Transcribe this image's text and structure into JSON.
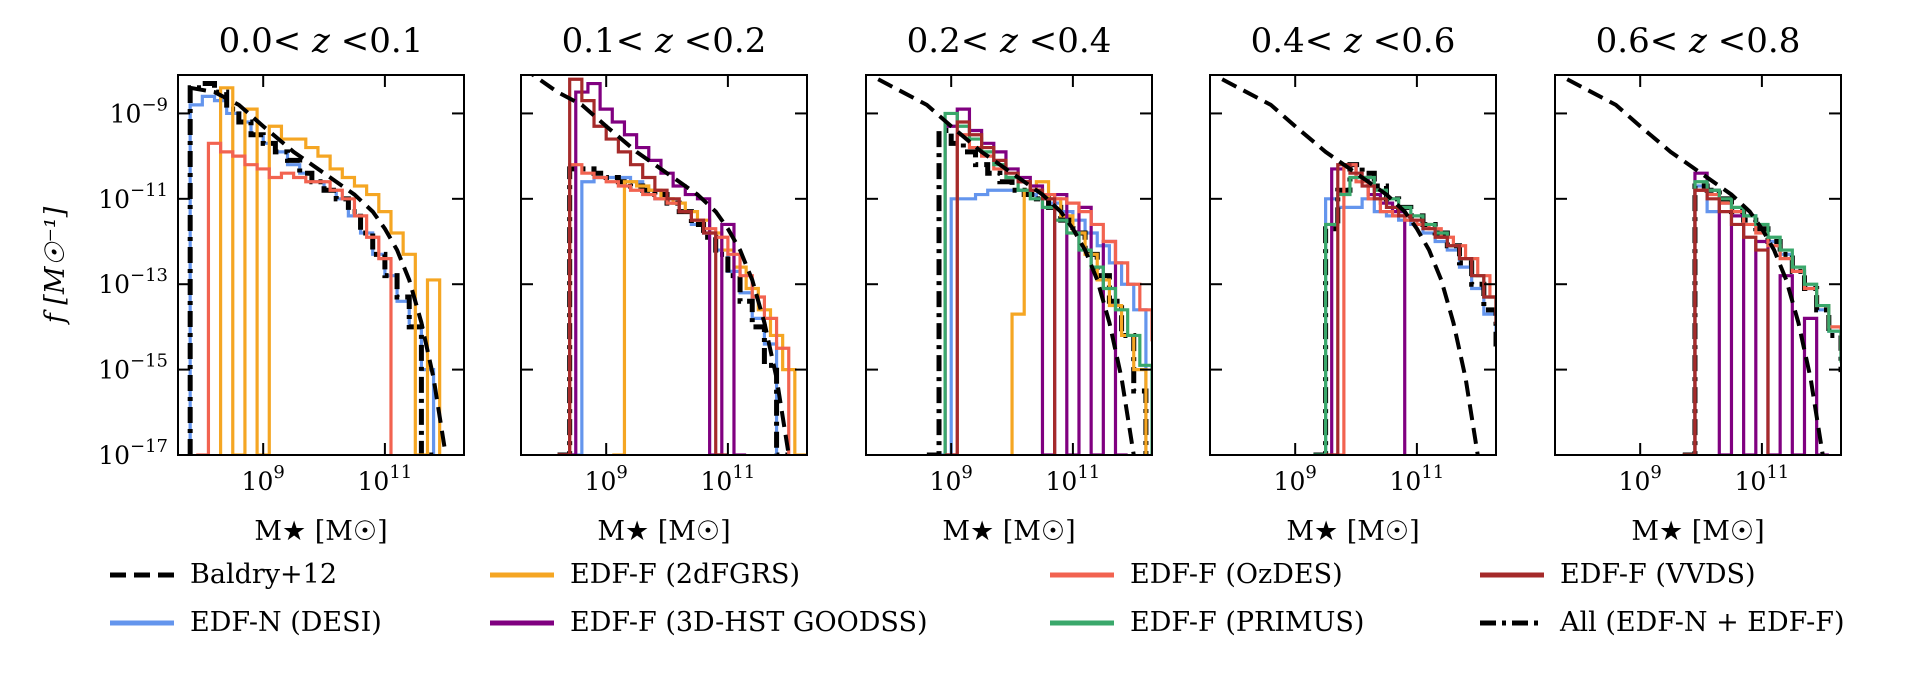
{
  "figure": {
    "ylabel": "f [M☉⁻¹]",
    "xlabel": "M★ [M☉]"
  },
  "chart_data": {
    "type": "line",
    "scale": "log-log",
    "xlim_log10": [
      7.6,
      12.3
    ],
    "ylim_log10": [
      -17,
      -8.1
    ],
    "y_ticks": [
      {
        "value": -9,
        "base": "10",
        "exp": "−9"
      },
      {
        "value": -11,
        "base": "10",
        "exp": "−11"
      },
      {
        "value": -13,
        "base": "10",
        "exp": "−13"
      },
      {
        "value": -15,
        "base": "10",
        "exp": "−15"
      },
      {
        "value": -17,
        "base": "10",
        "exp": "−17"
      }
    ],
    "x_ticks": [
      {
        "value": 9,
        "base": "10",
        "exp": "9"
      },
      {
        "value": 11,
        "base": "10",
        "exp": "11"
      }
    ],
    "colors": {
      "baldry": "#000000",
      "desi": "#6495ed",
      "2dfgrs": "#f5a623",
      "hst": "#800080",
      "ozdes": "#f26350",
      "primus": "#3aa86b",
      "vvds": "#a52a2a",
      "all": "#000000"
    },
    "legend": [
      {
        "key": "baldry",
        "label": "Baldry+12",
        "style": "dashed"
      },
      {
        "key": "2dfgrs",
        "label": "EDF-F (2dFGRS)",
        "style": "solid"
      },
      {
        "key": "ozdes",
        "label": "EDF-F (OzDES)",
        "style": "solid"
      },
      {
        "key": "vvds",
        "label": "EDF-F (VVDS)",
        "style": "solid"
      },
      {
        "key": "desi",
        "label": "EDF-N (DESI)",
        "style": "solid"
      },
      {
        "key": "hst",
        "label": "EDF-F (3D-HST GOODSS)",
        "style": "solid"
      },
      {
        "key": "primus",
        "label": "EDF-F (PRIMUS)",
        "style": "solid"
      },
      {
        "key": "all",
        "label": "All (EDF-N + EDF-F)",
        "style": "dashdot"
      }
    ],
    "panels": [
      {
        "title": "0.0< z <0.1",
        "title_parts": [
          "0.0< ",
          "z",
          " <0.1"
        ],
        "baldry": {
          "x": [
            7.8,
            8.2,
            8.6,
            9.0,
            9.5,
            10.0,
            10.5,
            10.8,
            11.0,
            11.2,
            11.4,
            11.6,
            11.8,
            12.0
          ],
          "y": [
            -8.4,
            -8.5,
            -8.8,
            -9.3,
            -9.9,
            -10.4,
            -10.9,
            -11.3,
            -11.7,
            -12.2,
            -12.9,
            -13.9,
            -15.2,
            -17.0
          ]
        },
        "series": [
          {
            "key": "desi",
            "start": 7.8,
            "width": 0.2,
            "y": [
              -8.8,
              -8.6,
              -8.7,
              -9.0,
              -9.2,
              -9.5,
              -9.7,
              -9.9,
              -10.2,
              -10.4,
              -10.6,
              -10.8,
              -11.0,
              -11.4,
              -11.8,
              -12.3,
              -12.8,
              -13.4,
              -14.0,
              -15.0
            ]
          },
          {
            "key": "all",
            "start": 7.8,
            "width": 0.2,
            "y": [
              -8.4,
              -8.3,
              -8.5,
              -8.9,
              -9.2,
              -9.5,
              -9.7,
              -9.9,
              -10.1,
              -10.4,
              -10.6,
              -10.8,
              -11.0,
              -11.3,
              -11.8,
              -12.3,
              -12.8,
              -13.3,
              -14.0,
              -17.0
            ]
          },
          {
            "key": "2dfgrs",
            "start": 8.3,
            "width": 0.2,
            "y": [
              -8.4,
              -17.0,
              -8.9,
              -17.0,
              -9.3,
              -9.6,
              -9.6,
              -9.8,
              -10.0,
              -10.3,
              -10.5,
              -10.7,
              -10.9,
              -11.3,
              -11.8,
              -12.3,
              -17.0,
              -12.9
            ]
          },
          {
            "key": "ozdes",
            "start": 7.9,
            "width": 0.2,
            "y": [
              -17.0,
              -9.7,
              -9.9,
              -10.0,
              -10.2,
              -10.3,
              -10.5,
              -10.4,
              -10.5,
              -10.6,
              -10.6,
              -10.8,
              -11.0,
              -11.4,
              -11.9,
              -12.4
            ]
          }
        ]
      },
      {
        "title": "0.1< z <0.2",
        "title_parts": [
          "0.1< ",
          "z",
          " <0.2"
        ],
        "baldry": {
          "x": [
            7.6,
            8.2,
            8.6,
            9.0,
            9.5,
            10.0,
            10.5,
            10.8,
            11.0,
            11.2,
            11.4,
            11.6,
            11.8,
            12.0
          ],
          "y": [
            -7.9,
            -8.5,
            -8.8,
            -9.3,
            -9.9,
            -10.4,
            -10.9,
            -11.3,
            -11.7,
            -12.2,
            -12.9,
            -13.9,
            -15.2,
            -17.0
          ]
        },
        "series": [
          {
            "key": "desi",
            "start": 8.4,
            "width": 0.2,
            "y": [
              -17.0,
              -10.6,
              -10.5,
              -10.5,
              -10.5,
              -10.6,
              -10.8,
              -11.0,
              -11.1,
              -11.3,
              -11.6,
              -11.8,
              -12.2,
              -12.7,
              -13.2,
              -13.8,
              -14.4
            ]
          },
          {
            "key": "all",
            "start": 8.2,
            "width": 0.2,
            "y": [
              -17.0,
              -10.3,
              -10.3,
              -10.4,
              -10.5,
              -10.6,
              -10.7,
              -10.8,
              -10.9,
              -11.1,
              -11.3,
              -11.6,
              -11.9,
              -12.3,
              -12.8,
              -13.4,
              -14.0,
              -14.9,
              -17.0
            ]
          },
          {
            "key": "2dfgrs",
            "start": 9.1,
            "width": 0.2,
            "y": [
              -17.0,
              -10.6,
              -10.7,
              -10.8,
              -11.0,
              -11.1,
              -11.3,
              -11.5,
              -11.8,
              -12.2,
              -12.6,
              -13.1,
              -13.6,
              -14.2,
              -15.0,
              -17.0
            ]
          },
          {
            "key": "hst",
            "start": 8.3,
            "width": 0.2,
            "y": [
              -17.0,
              -8.5,
              -8.3,
              -8.9,
              -9.2,
              -9.5,
              -9.8,
              -10.1,
              -10.4,
              -10.7,
              -10.9,
              -11.0,
              -17.0,
              -11.6,
              -17.0
            ]
          },
          {
            "key": "ozdes",
            "start": 8.2,
            "width": 0.2,
            "y": [
              -17.0,
              -10.2,
              -10.4,
              -10.5,
              -10.6,
              -10.7,
              -10.8,
              -10.9,
              -11.0,
              -11.1,
              -11.3,
              -11.5,
              -11.7,
              -11.9,
              -12.3,
              -12.8,
              -13.3,
              -13.8,
              -14.5
            ]
          },
          {
            "key": "vvds",
            "start": 8.2,
            "width": 0.2,
            "y": [
              -17.0,
              -8.2,
              -8.7,
              -9.3,
              -9.6,
              -9.9,
              -10.2,
              -10.5,
              -10.8,
              -11.0,
              -11.3,
              -11.5,
              -11.8,
              -17.0
            ]
          }
        ]
      },
      {
        "title": "0.2< z <0.4",
        "title_parts": [
          "0.2< ",
          "z",
          " <0.4"
        ],
        "baldry": {
          "x": [
            7.8,
            8.2,
            8.6,
            9.0,
            9.5,
            10.0,
            10.5,
            10.8,
            11.0,
            11.2,
            11.4,
            11.6,
            11.8,
            12.0
          ],
          "y": [
            -8.2,
            -8.5,
            -8.8,
            -9.3,
            -9.9,
            -10.4,
            -10.9,
            -11.3,
            -11.7,
            -12.2,
            -12.9,
            -13.9,
            -15.2,
            -17.0
          ]
        },
        "series": [
          {
            "key": "desi",
            "start": 8.8,
            "width": 0.2,
            "y": [
              -17.0,
              -11.0,
              -11.0,
              -10.9,
              -10.8,
              -10.8,
              -10.8,
              -10.9,
              -11.0,
              -11.1,
              -11.3,
              -11.5,
              -11.8,
              -12.1,
              -12.5,
              -13.0,
              -13.6
            ]
          },
          {
            "key": "all",
            "start": 8.6,
            "width": 0.2,
            "y": [
              -17.0,
              -9.4,
              -9.7,
              -9.9,
              -10.2,
              -10.4,
              -10.6,
              -10.8,
              -10.9,
              -11.0,
              -11.2,
              -11.5,
              -11.8,
              -12.3,
              -12.8,
              -13.4,
              -14.2,
              -15.5
            ]
          },
          {
            "key": "2dfgrs",
            "start": 10.0,
            "width": 0.2,
            "y": [
              -13.7,
              -10.8,
              -10.6,
              -11.0,
              -11.4,
              -11.8,
              -12.3,
              -12.9,
              -13.5,
              -14.2,
              -15.0
            ]
          },
          {
            "key": "hst",
            "start": 8.9,
            "width": 0.2,
            "y": [
              -9.3,
              -8.9,
              -9.4,
              -9.7,
              -9.9,
              -10.3,
              -10.5,
              -10.7,
              -17.0,
              -10.9,
              -17.0,
              -11.2,
              -17.0,
              -12.0,
              -17.0
            ]
          },
          {
            "key": "ozdes",
            "start": 8.9,
            "width": 0.2,
            "y": [
              -17.0,
              -9.5,
              -9.8,
              -10.0,
              -10.3,
              -10.5,
              -10.6,
              -10.8,
              -10.9,
              -11.0,
              -11.1,
              -11.3,
              -11.6,
              -12.0,
              -12.5,
              -13.0,
              -13.6,
              -14.3,
              -15.2,
              -17.0
            ]
          },
          {
            "key": "primus",
            "start": 8.9,
            "width": 0.2,
            "y": [
              -9.0,
              -9.3,
              -9.6,
              -9.9,
              -10.2,
              -10.5,
              -10.8,
              -11.0,
              -11.2,
              -11.5,
              -11.8,
              -12.2,
              -12.6,
              -13.1,
              -13.6,
              -14.2,
              -14.9
            ]
          },
          {
            "key": "vvds",
            "start": 8.9,
            "width": 0.2,
            "y": [
              -17.0,
              -9.2,
              -9.5,
              -9.8,
              -10.1,
              -10.4,
              -10.6,
              -10.8,
              -11.0
            ]
          }
        ]
      },
      {
        "title": "0.4< z <0.6",
        "title_parts": [
          "0.4< ",
          "z",
          " <0.6"
        ],
        "baldry": {
          "x": [
            7.8,
            8.2,
            8.6,
            9.0,
            9.5,
            10.0,
            10.5,
            10.8,
            11.0,
            11.2,
            11.4,
            11.6,
            11.8,
            12.0
          ],
          "y": [
            -8.2,
            -8.5,
            -8.8,
            -9.3,
            -9.9,
            -10.4,
            -10.9,
            -11.3,
            -11.7,
            -12.2,
            -12.9,
            -13.9,
            -15.2,
            -17.0
          ]
        },
        "series": [
          {
            "key": "desi",
            "start": 9.3,
            "width": 0.2,
            "y": [
              -17.0,
              -11.0,
              -11.2,
              -11.2,
              -11.0,
              -11.3,
              -11.4,
              -11.5,
              -11.6,
              -11.8,
              -12.0,
              -12.2,
              -12.6,
              -13.1,
              -13.7,
              -14.4,
              -15.3
            ]
          },
          {
            "key": "all",
            "start": 9.3,
            "width": 0.2,
            "y": [
              -17.0,
              -11.7,
              -10.8,
              -10.2,
              -10.4,
              -10.7,
              -11.0,
              -11.2,
              -11.4,
              -11.6,
              -11.8,
              -12.1,
              -12.5,
              -13.0,
              -13.6,
              -14.4,
              -17.0
            ]
          },
          {
            "key": "hst",
            "start": 9.6,
            "width": 0.2,
            "y": [
              -10.3,
              -10.2,
              -10.5,
              -10.9,
              -11.1,
              -11.3
            ]
          },
          {
            "key": "ozdes",
            "start": 9.6,
            "width": 0.2,
            "y": [
              -17.0,
              -10.2,
              -10.6,
              -11.0,
              -11.3,
              -11.4,
              -11.5,
              -11.6,
              -11.7,
              -11.9,
              -12.1,
              -12.4,
              -12.8,
              -13.3,
              -13.9,
              -14.6
            ]
          },
          {
            "key": "primus",
            "start": 9.3,
            "width": 0.2,
            "y": [
              -17.0,
              -11.6,
              -10.9,
              -10.5,
              -10.5,
              -10.8,
              -11.0,
              -11.2,
              -11.4,
              -11.6,
              -11.8,
              -12.1,
              -12.4,
              -12.8,
              -13.3,
              -13.9,
              -14.6
            ]
          },
          {
            "key": "vvds",
            "start": 9.5,
            "width": 0.2,
            "y": [
              -17.0,
              -10.2,
              -10.4,
              -10.7,
              -11.0,
              -11.2,
              -11.4,
              -11.5,
              -11.7,
              -11.9,
              -12.1,
              -12.4,
              -12.8,
              -13.3,
              -13.9,
              -17.0
            ]
          }
        ]
      },
      {
        "title": "0.6< z <0.8",
        "title_parts": [
          "0.6< ",
          "z",
          " <0.8"
        ],
        "baldry": {
          "x": [
            7.8,
            8.2,
            8.6,
            9.0,
            9.5,
            10.0,
            10.5,
            10.8,
            11.0,
            11.2,
            11.4,
            11.6,
            11.8,
            12.0
          ],
          "y": [
            -8.2,
            -8.5,
            -8.8,
            -9.3,
            -9.9,
            -10.4,
            -10.9,
            -11.3,
            -11.7,
            -12.2,
            -12.9,
            -13.9,
            -15.2,
            -17.0
          ]
        },
        "series": [
          {
            "key": "desi",
            "start": 9.7,
            "width": 0.2,
            "y": [
              -17.0,
              -10.7,
              -11.3,
              -11.1,
              -11.3,
              -11.4,
              -11.7,
              -12.0,
              -12.3,
              -12.7,
              -13.1,
              -13.6,
              -14.1,
              -14.7
            ]
          },
          {
            "key": "all",
            "start": 9.7,
            "width": 0.2,
            "y": [
              -17.0,
              -10.7,
              -10.8,
              -11.0,
              -11.3,
              -11.5,
              -11.7,
              -12.0,
              -12.3,
              -12.7,
              -13.1,
              -13.6,
              -14.2,
              -15.0,
              -17.0
            ]
          },
          {
            "key": "hst",
            "start": 9.9,
            "width": 0.2,
            "y": [
              -10.4,
              -10.8,
              -17.0,
              -11.4,
              -17.0,
              -12.0,
              -17.0,
              -12.8,
              -17.0,
              -13.8,
              -17.0
            ]
          },
          {
            "key": "ozdes",
            "start": 9.7,
            "width": 0.2,
            "y": [
              -17.0,
              -10.8,
              -10.9,
              -11.1,
              -11.3,
              -11.6,
              -11.8,
              -12.1,
              -12.4,
              -12.7,
              -13.1,
              -13.5,
              -14.0,
              -14.6,
              -15.4,
              -17.0
            ]
          },
          {
            "key": "primus",
            "start": 9.7,
            "width": 0.2,
            "y": [
              -17.0,
              -10.6,
              -10.8,
              -11.0,
              -11.2,
              -11.4,
              -11.6,
              -11.9,
              -12.2,
              -12.6,
              -13.0,
              -13.5,
              -14.1,
              -14.8
            ]
          },
          {
            "key": "vvds",
            "start": 9.7,
            "width": 0.2,
            "y": [
              -17.0,
              -10.8,
              -11.0,
              -11.3,
              -11.6,
              -11.9,
              -12.2
            ]
          }
        ]
      }
    ]
  }
}
